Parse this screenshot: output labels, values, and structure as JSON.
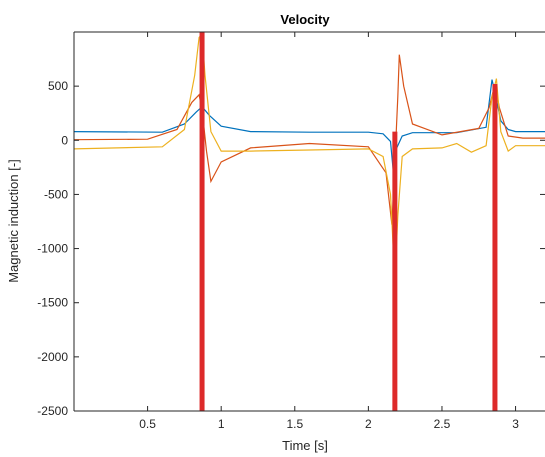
{
  "chart_data": {
    "type": "line",
    "title": "Velocity",
    "xlabel": "Time [s]",
    "ylabel": "Magnetic induction [-]",
    "xlim": [
      0,
      3.2
    ],
    "ylim": [
      -2500,
      1000
    ],
    "xticks": [
      0.5,
      1,
      1.5,
      2,
      2.5,
      3
    ],
    "xtick_labels": [
      "0.5",
      "1",
      "1.5",
      "2",
      "2.5",
      "3"
    ],
    "yticks": [
      -2500,
      -2000,
      -1500,
      -1000,
      -500,
      0,
      500
    ],
    "ytick_labels": [
      "-2500",
      "-2000",
      "-1500",
      "-1000",
      "-500",
      "0",
      "500"
    ],
    "grid": false,
    "series": [
      {
        "color": "#0072BD",
        "x": [
          0,
          0.6,
          0.75,
          0.83,
          0.87,
          0.92,
          1.0,
          1.2,
          1.6,
          2.0,
          2.1,
          2.15,
          2.17,
          2.19,
          2.23,
          2.3,
          2.6,
          2.8,
          2.84,
          2.87,
          2.9,
          2.95,
          3.0,
          3.2
        ],
        "y": [
          80,
          75,
          150,
          260,
          310,
          230,
          130,
          80,
          75,
          75,
          60,
          -10,
          -300,
          -80,
          40,
          70,
          70,
          120,
          560,
          380,
          180,
          100,
          80,
          80
        ]
      },
      {
        "color": "#D95319",
        "x": [
          0,
          0.5,
          0.7,
          0.8,
          0.85,
          0.87,
          0.9,
          0.93,
          1.0,
          1.2,
          1.6,
          2.0,
          2.12,
          2.16,
          2.18,
          2.2,
          2.21,
          2.24,
          2.3,
          2.5,
          2.75,
          2.82,
          2.86,
          2.89,
          2.95,
          3.05,
          3.2
        ],
        "y": [
          5,
          10,
          100,
          350,
          420,
          280,
          -100,
          -380,
          -200,
          -70,
          -30,
          -60,
          -300,
          -780,
          -200,
          400,
          790,
          500,
          150,
          50,
          110,
          300,
          520,
          300,
          40,
          20,
          20
        ]
      },
      {
        "color": "#EDB120",
        "x": [
          0,
          0.6,
          0.75,
          0.82,
          0.85,
          0.87,
          0.89,
          0.93,
          1.0,
          1.2,
          1.6,
          2.0,
          2.1,
          2.15,
          2.18,
          2.2,
          2.23,
          2.3,
          2.5,
          2.6,
          2.7,
          2.8,
          2.84,
          2.87,
          2.9,
          2.95,
          3.0,
          3.2
        ],
        "y": [
          -80,
          -60,
          100,
          600,
          950,
          980,
          600,
          80,
          -100,
          -100,
          -90,
          -80,
          -150,
          -500,
          -1300,
          -700,
          -150,
          -80,
          -70,
          -30,
          -110,
          -50,
          400,
          570,
          80,
          -100,
          -50,
          -50
        ]
      }
    ],
    "vertical_markers": [
      {
        "x": 0.87,
        "y_top": 1000,
        "color": "#DD2A2A"
      },
      {
        "x": 2.18,
        "y_top": 80,
        "color": "#DD2A2A"
      },
      {
        "x": 2.86,
        "y_top": 520,
        "color": "#DD2A2A"
      }
    ]
  }
}
